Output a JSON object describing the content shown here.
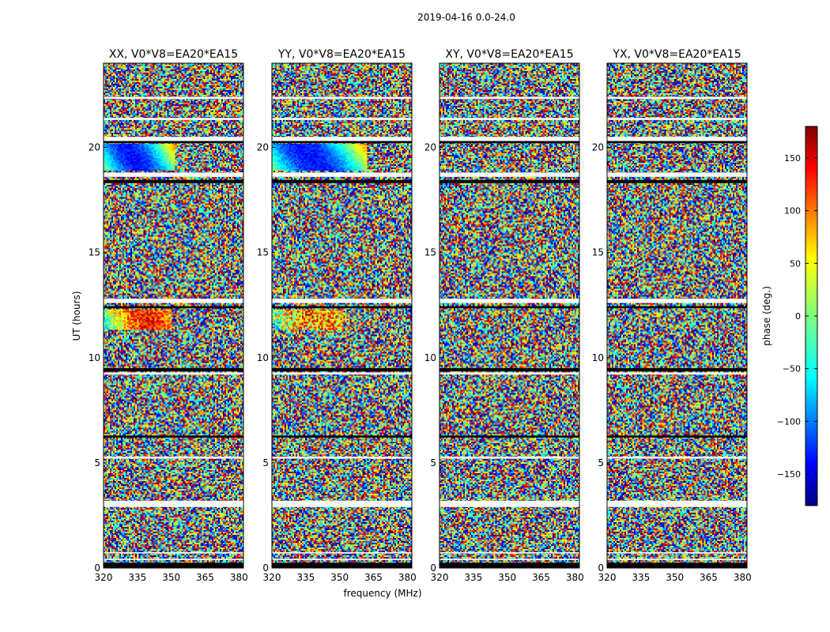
{
  "figure": {
    "suptitle": "2019-04-16 0.0-24.0",
    "xlabel": "frequency (MHz)",
    "ylabel": "UT (hours)"
  },
  "chart_data": {
    "type": "heatmap",
    "panels": [
      {
        "title": "XX, V0*V8=EA20*EA15",
        "coherent": [
          {
            "y": [
              18.9,
              20.2
            ],
            "x_end": 352,
            "strength": 0.9
          },
          {
            "y": [
              11.3,
              12.3
            ],
            "x_end": 350,
            "strength": 0.7
          }
        ]
      },
      {
        "title": "YY, V0*V8=EA20*EA15",
        "coherent": [
          {
            "y": [
              18.9,
              20.2
            ],
            "x_end": 362,
            "strength": 0.9
          },
          {
            "y": [
              11.3,
              12.3
            ],
            "x_end": 352,
            "strength": 0.5
          }
        ]
      },
      {
        "title": "XY, V0*V8=EA20*EA15",
        "coherent": []
      },
      {
        "title": "YX, V0*V8=EA20*EA15",
        "coherent": []
      }
    ],
    "x_axis": {
      "min": 320,
      "max": 382,
      "ticks": [
        320,
        335,
        350,
        365,
        380
      ]
    },
    "y_axis": {
      "min": 0,
      "max": 24,
      "ticks": [
        0,
        5,
        10,
        15,
        20
      ]
    },
    "colorbar": {
      "label": "phase (deg.)",
      "min": -180,
      "max": 180,
      "ticks": [
        -150,
        -100,
        -50,
        0,
        50,
        100,
        150
      ],
      "tick_labels": [
        "−150",
        "−100",
        "−50",
        "0",
        "50",
        "100",
        "150"
      ],
      "colormap": "jet"
    },
    "gaps_white": [
      [
        0.38,
        0.44
      ],
      [
        0.7,
        0.75
      ],
      [
        2.9,
        3.2
      ],
      [
        5.2,
        5.3
      ],
      [
        9.2,
        9.3
      ],
      [
        12.6,
        12.8
      ],
      [
        18.6,
        18.8
      ],
      [
        20.3,
        20.5
      ],
      [
        21.3,
        21.4
      ],
      [
        22.3,
        22.4
      ]
    ],
    "flag_black": [
      [
        0.0,
        0.25
      ],
      [
        9.35,
        9.5
      ],
      [
        12.35,
        12.45
      ],
      [
        18.3,
        18.45
      ],
      [
        20.2,
        20.3
      ],
      [
        6.2,
        6.3
      ]
    ]
  }
}
